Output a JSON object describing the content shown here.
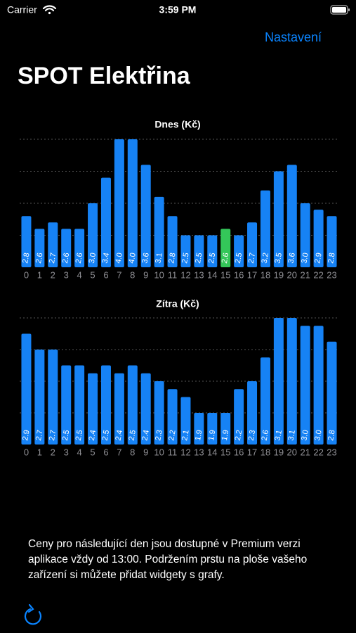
{
  "status_bar": {
    "carrier": "Carrier",
    "time": "3:59 PM"
  },
  "nav": {
    "settings": "Nastavení"
  },
  "header": {
    "title": "SPOT Elektřina"
  },
  "chart_data": [
    {
      "type": "bar",
      "title": "Dnes (Kč)",
      "categories": [
        "0",
        "1",
        "2",
        "3",
        "4",
        "5",
        "6",
        "7",
        "8",
        "9",
        "10",
        "11",
        "12",
        "13",
        "14",
        "15",
        "16",
        "17",
        "18",
        "19",
        "20",
        "21",
        "22",
        "23"
      ],
      "values": [
        2.8,
        2.6,
        2.7,
        2.6,
        2.6,
        3.0,
        3.4,
        4.0,
        4.0,
        3.6,
        3.1,
        2.8,
        2.5,
        2.5,
        2.5,
        2.6,
        2.5,
        2.7,
        3.2,
        3.5,
        3.6,
        3.0,
        2.9,
        2.8
      ],
      "value_labels": [
        "2.8",
        "2.6",
        "2.7",
        "2.6",
        "2.6",
        "3.0",
        "3.4",
        "4.0",
        "4.0",
        "3.6",
        "3.1",
        "2.8",
        "2.5",
        "2.5",
        "2.5",
        "2.6",
        "2.5",
        "2.7",
        "3.2",
        "3.5",
        "3.6",
        "3.0",
        "2.9",
        "2.8"
      ],
      "color": "#1682f5",
      "highlight": "15",
      "highlight_color": "#34c759",
      "ylim": [
        2,
        4
      ],
      "yticks": [
        2.5,
        3,
        3.5,
        4
      ],
      "grid": true
    },
    {
      "type": "bar",
      "title": "Zítra (Kč)",
      "categories": [
        "0",
        "1",
        "2",
        "3",
        "4",
        "5",
        "6",
        "7",
        "8",
        "9",
        "10",
        "11",
        "12",
        "13",
        "14",
        "15",
        "16",
        "17",
        "18",
        "19",
        "20",
        "21",
        "22",
        "23"
      ],
      "values": [
        2.9,
        2.7,
        2.7,
        2.5,
        2.5,
        2.4,
        2.5,
        2.4,
        2.5,
        2.4,
        2.3,
        2.2,
        2.1,
        1.9,
        1.9,
        1.9,
        2.2,
        2.3,
        2.6,
        3.1,
        3.1,
        3.0,
        3.0,
        2.8
      ],
      "value_labels": [
        "2.9",
        "2.7",
        "2.7",
        "2.5",
        "2.5",
        "2.4",
        "2.5",
        "2.4",
        "2.5",
        "2.4",
        "2.3",
        "2.2",
        "2.1",
        "1.9",
        "1.9",
        "1.9",
        "2.2",
        "2.3",
        "2.6",
        "3.1",
        "3.1",
        "3.0",
        "3.0",
        "2.8"
      ],
      "color": "#1682f5",
      "ylim": [
        1.5,
        3.1
      ],
      "yticks": [
        1.9,
        2.3,
        2.7,
        3.1
      ],
      "grid": true
    }
  ],
  "footer": {
    "text": "Ceny pro následující den jsou dostupné v Premium verzi aplikace vždy od 13:00. Podržením prstu na ploše vašeho zařízení si můžete přidat widgety s grafy."
  }
}
